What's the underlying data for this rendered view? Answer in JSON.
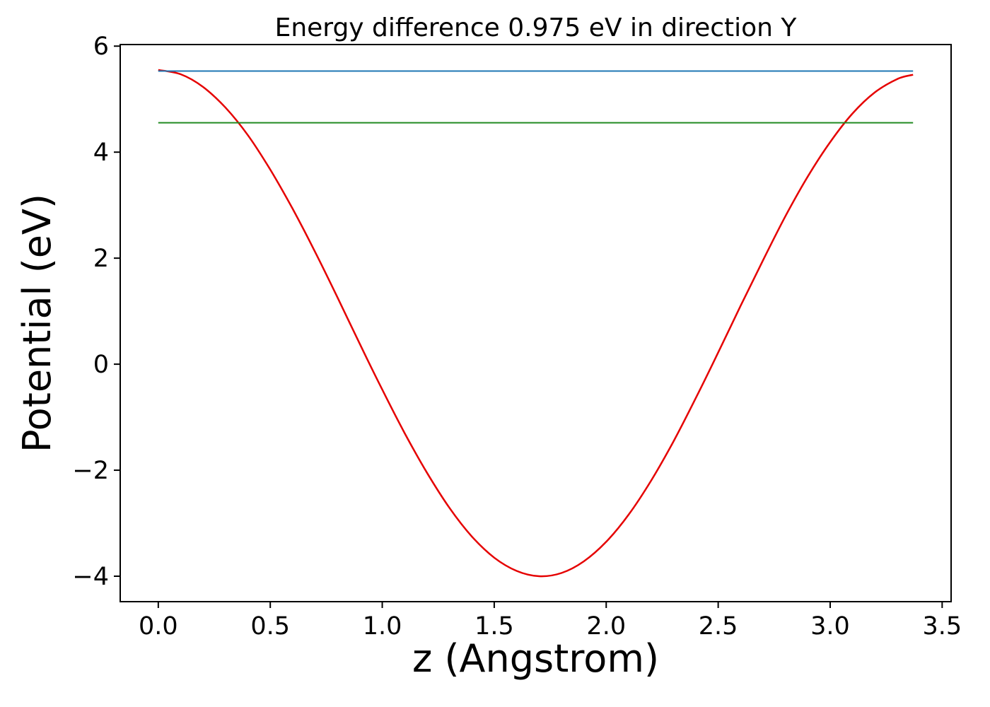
{
  "chart_data": {
    "type": "line",
    "title": "Energy difference 0.975 eV in direction Y",
    "xlabel": "z (Angstrom)",
    "ylabel": "Potential (eV)",
    "xlim": [
      -0.17,
      3.54
    ],
    "ylim": [
      -4.48,
      6.03
    ],
    "xticks": [
      0.0,
      0.5,
      1.0,
      1.5,
      2.0,
      2.5,
      3.0,
      3.5
    ],
    "xtick_labels": [
      "0.0",
      "0.5",
      "1.0",
      "1.5",
      "2.0",
      "2.5",
      "3.0",
      "3.5"
    ],
    "yticks": [
      -4,
      -2,
      0,
      2,
      4,
      6
    ],
    "ytick_labels": [
      "−4",
      "−2",
      "0",
      "2",
      "4",
      "6"
    ],
    "grid": false,
    "legend": "none",
    "axis_color": "#000000",
    "text_color": "#000000",
    "energy_difference_eV": 0.975,
    "direction": "Y",
    "series": [
      {
        "name": "potential-curve",
        "color": "#e50000",
        "width": 2.5,
        "smooth": true,
        "points": [
          [
            0.0,
            5.55
          ],
          [
            0.1,
            5.47
          ],
          [
            0.2,
            5.23
          ],
          [
            0.3,
            4.84
          ],
          [
            0.4,
            4.32
          ],
          [
            0.5,
            3.67
          ],
          [
            0.6,
            2.93
          ],
          [
            0.7,
            2.12
          ],
          [
            0.8,
            1.26
          ],
          [
            0.9,
            0.38
          ],
          [
            1.0,
            -0.48
          ],
          [
            1.1,
            -1.3
          ],
          [
            1.2,
            -2.05
          ],
          [
            1.3,
            -2.71
          ],
          [
            1.4,
            -3.25
          ],
          [
            1.5,
            -3.65
          ],
          [
            1.6,
            -3.9
          ],
          [
            1.7,
            -4.0
          ],
          [
            1.8,
            -3.94
          ],
          [
            1.9,
            -3.72
          ],
          [
            2.0,
            -3.35
          ],
          [
            2.1,
            -2.84
          ],
          [
            2.2,
            -2.2
          ],
          [
            2.3,
            -1.46
          ],
          [
            2.4,
            -0.64
          ],
          [
            2.5,
            0.22
          ],
          [
            2.6,
            1.1
          ],
          [
            2.7,
            1.96
          ],
          [
            2.8,
            2.79
          ],
          [
            2.9,
            3.54
          ],
          [
            3.0,
            4.19
          ],
          [
            3.1,
            4.73
          ],
          [
            3.2,
            5.13
          ],
          [
            3.3,
            5.38
          ],
          [
            3.37,
            5.46
          ]
        ]
      },
      {
        "name": "upper-level-line",
        "color": "#1f77b4",
        "width": 2,
        "smooth": false,
        "points": [
          [
            0.0,
            5.53
          ],
          [
            3.37,
            5.53
          ]
        ]
      },
      {
        "name": "lower-level-line",
        "color": "#228b22",
        "width": 2,
        "smooth": false,
        "points": [
          [
            0.0,
            4.555
          ],
          [
            3.37,
            4.555
          ]
        ]
      }
    ]
  }
}
